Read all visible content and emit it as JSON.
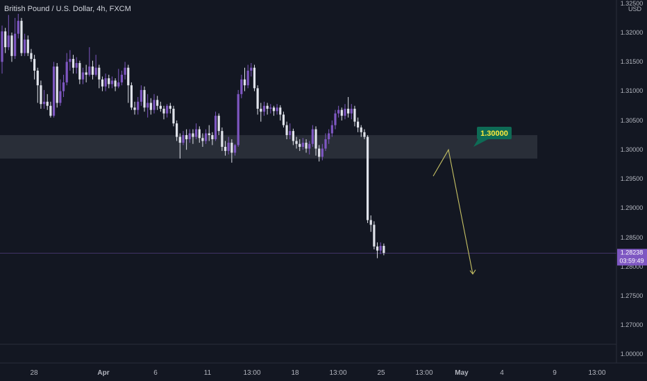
{
  "chart_data": {
    "type": "candlestick",
    "title": "British Pound / U.S. Dollar, 4h, FXCM",
    "currency": "USD",
    "ylim": [
      0.995,
      1.3265
    ],
    "y_ticks": [
      "1.32500",
      "1.32000",
      "1.31500",
      "1.31000",
      "1.30500",
      "1.30000",
      "1.29500",
      "1.29000",
      "1.28500",
      "1.28000",
      "1.27500",
      "1.27000",
      "1.00000"
    ],
    "x_ticks": [
      "28",
      "Apr",
      "6",
      "11",
      "13:00",
      "18",
      "13:00",
      "25",
      "13:00",
      "May",
      "4",
      "9",
      "13:00"
    ],
    "price_label": {
      "value": "1.28238",
      "countdown": "03:59:49"
    },
    "target_label": "1.30000",
    "zone": {
      "low": 1.2985,
      "high": 1.3025
    },
    "projection_path": [
      1.2955,
      1.3,
      1.2788
    ],
    "colors": {
      "background": "#131722",
      "up": "#7e57c2",
      "down": "#e0e3eb",
      "text": "#b2b5be",
      "projection": "#c8c365",
      "target_bg": "#0e6b55",
      "price_bg": "#7e57c2"
    },
    "candles": [
      [
        1.315,
        1.3202,
        1.3212,
        1.313
      ],
      [
        1.3202,
        1.3175,
        1.3208,
        1.3165
      ],
      [
        1.3175,
        1.3195,
        1.323,
        1.317
      ],
      [
        1.3195,
        1.316,
        1.32,
        1.315
      ],
      [
        1.316,
        1.3198,
        1.3225,
        1.3155
      ],
      [
        1.3198,
        1.322,
        1.3232,
        1.319
      ],
      [
        1.322,
        1.3165,
        1.3225,
        1.316
      ],
      [
        1.3165,
        1.3188,
        1.3198,
        1.316
      ],
      [
        1.3188,
        1.3165,
        1.3195,
        1.316
      ],
      [
        1.3165,
        1.3155,
        1.3172,
        1.315
      ],
      [
        1.3155,
        1.3135,
        1.3162,
        1.312
      ],
      [
        1.3135,
        1.311,
        1.314,
        1.308
      ],
      [
        1.311,
        1.3078,
        1.3118,
        1.307
      ],
      [
        1.3078,
        1.3082,
        1.3102,
        1.307
      ],
      [
        1.3082,
        1.3075,
        1.3095,
        1.3068
      ],
      [
        1.3075,
        1.3058,
        1.3082,
        1.3055
      ],
      [
        1.3058,
        1.3142,
        1.315,
        1.3055
      ],
      [
        1.3142,
        1.308,
        1.3148,
        1.3072
      ],
      [
        1.308,
        1.31,
        1.312,
        1.3075
      ],
      [
        1.31,
        1.3115,
        1.3128,
        1.309
      ],
      [
        1.3115,
        1.315,
        1.3165,
        1.311
      ],
      [
        1.315,
        1.3155,
        1.317,
        1.3135
      ],
      [
        1.3155,
        1.314,
        1.3162,
        1.313
      ],
      [
        1.314,
        1.3148,
        1.3158,
        1.313
      ],
      [
        1.3148,
        1.312,
        1.3152,
        1.3112
      ],
      [
        1.312,
        1.3132,
        1.314,
        1.3112
      ],
      [
        1.3132,
        1.3128,
        1.3145,
        1.3115
      ],
      [
        1.3128,
        1.3142,
        1.3175,
        1.3125
      ],
      [
        1.3142,
        1.3128,
        1.3152,
        1.312
      ],
      [
        1.3128,
        1.314,
        1.3162,
        1.3125
      ],
      [
        1.314,
        1.312,
        1.3145,
        1.3105
      ],
      [
        1.312,
        1.3108,
        1.3125,
        1.31
      ],
      [
        1.3108,
        1.3122,
        1.313,
        1.31
      ],
      [
        1.3122,
        1.3112,
        1.3128,
        1.3105
      ],
      [
        1.3112,
        1.3118,
        1.3125,
        1.3105
      ],
      [
        1.3118,
        1.3108,
        1.3122,
        1.31
      ],
      [
        1.3108,
        1.3115,
        1.3138,
        1.3105
      ],
      [
        1.3115,
        1.3128,
        1.3135,
        1.311
      ],
      [
        1.3128,
        1.314,
        1.315,
        1.312
      ],
      [
        1.314,
        1.311,
        1.3145,
        1.308
      ],
      [
        1.311,
        1.3072,
        1.3115,
        1.3068
      ],
      [
        1.3072,
        1.3068,
        1.3082,
        1.306
      ],
      [
        1.3068,
        1.3082,
        1.309,
        1.306
      ],
      [
        1.3082,
        1.3102,
        1.311,
        1.3075
      ],
      [
        1.3102,
        1.3072,
        1.3108,
        1.3065
      ],
      [
        1.3072,
        1.308,
        1.3095,
        1.3055
      ],
      [
        1.308,
        1.3068,
        1.3088,
        1.306
      ],
      [
        1.3068,
        1.3085,
        1.3095,
        1.3062
      ],
      [
        1.3085,
        1.3075,
        1.3092,
        1.3068
      ],
      [
        1.3075,
        1.307,
        1.3082,
        1.3065
      ],
      [
        1.307,
        1.3062,
        1.3075,
        1.3052
      ],
      [
        1.3062,
        1.3075,
        1.3078,
        1.3055
      ],
      [
        1.3075,
        1.307,
        1.308,
        1.3062
      ],
      [
        1.307,
        1.3045,
        1.3075,
        1.304
      ],
      [
        1.3045,
        1.3022,
        1.305,
        1.3015
      ],
      [
        1.3022,
        1.3012,
        1.3028,
        1.2985
      ],
      [
        1.3012,
        1.3025,
        1.3032,
        1.3008
      ],
      [
        1.3025,
        1.3018,
        1.3035,
        1.3
      ],
      [
        1.3018,
        1.3028,
        1.3035,
        1.3012
      ],
      [
        1.3028,
        1.3022,
        1.3035,
        1.301
      ],
      [
        1.3022,
        1.3035,
        1.3045,
        1.3018
      ],
      [
        1.3035,
        1.302,
        1.304,
        1.3012
      ],
      [
        1.302,
        1.3015,
        1.3028,
        1.3005
      ],
      [
        1.3015,
        1.3028,
        1.3035,
        1.301
      ],
      [
        1.3028,
        1.3025,
        1.3042,
        1.3015
      ],
      [
        1.3025,
        1.3018,
        1.303,
        1.3008
      ],
      [
        1.3018,
        1.3058,
        1.3065,
        1.3015
      ],
      [
        1.3058,
        1.3032,
        1.3062,
        1.3025
      ],
      [
        1.3032,
        1.3005,
        1.3038,
        1.2998
      ],
      [
        1.3005,
        1.2998,
        1.3015,
        1.299
      ],
      [
        1.2998,
        1.3012,
        1.3022,
        1.2992
      ],
      [
        1.3012,
        1.2995,
        1.3018,
        1.2978
      ],
      [
        1.2995,
        1.3008,
        1.301,
        1.299
      ],
      [
        1.3008,
        1.3095,
        1.3102,
        1.3005
      ],
      [
        1.3095,
        1.312,
        1.3128,
        1.3088
      ],
      [
        1.312,
        1.311,
        1.314,
        1.31
      ],
      [
        1.311,
        1.3135,
        1.3145,
        1.3105
      ],
      [
        1.3135,
        1.314,
        1.3148,
        1.3125
      ],
      [
        1.314,
        1.3105,
        1.3145,
        1.31
      ],
      [
        1.3105,
        1.307,
        1.311,
        1.306
      ],
      [
        1.307,
        1.3065,
        1.308,
        1.3048
      ],
      [
        1.3065,
        1.3075,
        1.3082,
        1.3058
      ],
      [
        1.3075,
        1.307,
        1.308,
        1.306
      ],
      [
        1.307,
        1.3072,
        1.3078,
        1.3062
      ],
      [
        1.3072,
        1.3066,
        1.3075,
        1.3058
      ],
      [
        1.3066,
        1.3072,
        1.3078,
        1.306
      ],
      [
        1.3072,
        1.306,
        1.3076,
        1.305
      ],
      [
        1.306,
        1.3042,
        1.3065,
        1.3038
      ],
      [
        1.3042,
        1.3025,
        1.3048,
        1.3018
      ],
      [
        1.3025,
        1.3032,
        1.3045,
        1.3018
      ],
      [
        1.3032,
        1.3015,
        1.3036,
        1.3008
      ],
      [
        1.3015,
        1.301,
        1.3022,
        1.3002
      ],
      [
        1.301,
        1.3005,
        1.3018,
        1.2998
      ],
      [
        1.3005,
        1.3012,
        1.302,
        1.3
      ],
      [
        1.3012,
        1.3002,
        1.3018,
        1.2995
      ],
      [
        1.3002,
        1.301,
        1.3015,
        1.2992
      ],
      [
        1.301,
        1.3035,
        1.3042,
        1.3005
      ],
      [
        1.3035,
        1.3002,
        1.304,
        1.299
      ],
      [
        1.3002,
        1.2988,
        1.3008,
        1.298
      ],
      [
        1.2988,
        1.3002,
        1.301,
        1.2982
      ],
      [
        1.3002,
        1.3018,
        1.3028,
        1.2998
      ],
      [
        1.3018,
        1.3028,
        1.3035,
        1.301
      ],
      [
        1.3028,
        1.3042,
        1.305,
        1.3022
      ],
      [
        1.3042,
        1.3062,
        1.3068,
        1.3035
      ],
      [
        1.3062,
        1.3068,
        1.3075,
        1.3055
      ],
      [
        1.3068,
        1.3058,
        1.3072,
        1.305
      ],
      [
        1.3058,
        1.307,
        1.3078,
        1.3052
      ],
      [
        1.307,
        1.3062,
        1.309,
        1.3055
      ],
      [
        1.3062,
        1.307,
        1.3078,
        1.3052
      ],
      [
        1.307,
        1.3048,
        1.3075,
        1.304
      ],
      [
        1.3048,
        1.3038,
        1.3055,
        1.303
      ],
      [
        1.3038,
        1.303,
        1.3042,
        1.3022
      ],
      [
        1.303,
        1.3022,
        1.3035,
        1.3018
      ],
      [
        1.3022,
        1.288,
        1.3025,
        1.2875
      ],
      [
        1.288,
        1.2872,
        1.2888,
        1.286
      ],
      [
        1.2872,
        1.2835,
        1.2878,
        1.283
      ],
      [
        1.2835,
        1.2828,
        1.2842,
        1.2815
      ],
      [
        1.2828,
        1.2836,
        1.2842,
        1.2822
      ],
      [
        1.2836,
        1.2824,
        1.284,
        1.282
      ]
    ]
  }
}
